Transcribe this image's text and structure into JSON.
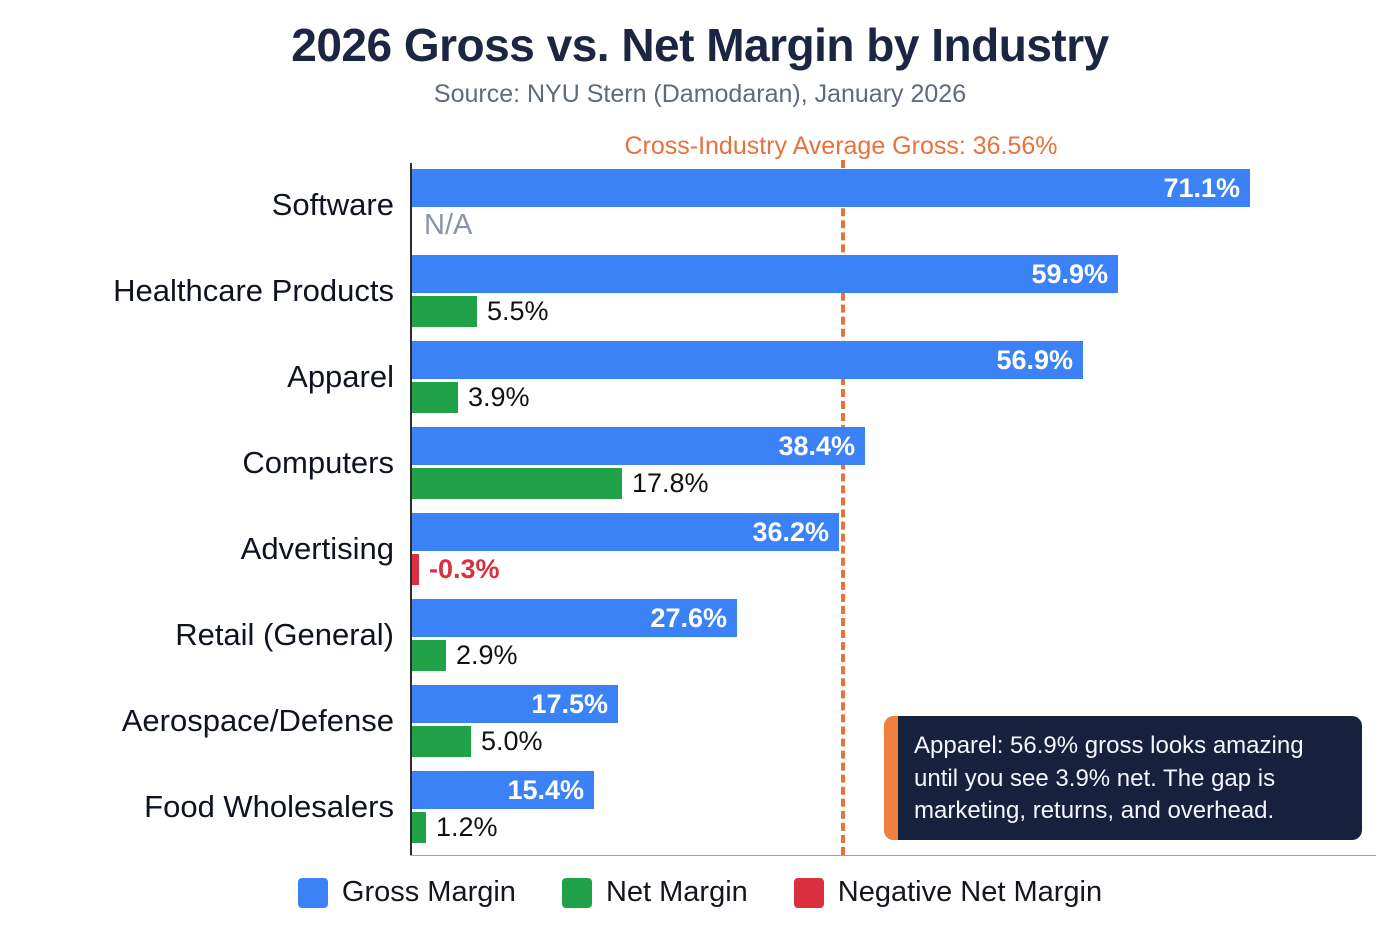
{
  "title": "2026 Gross vs. Net Margin by Industry",
  "subtitle": "Source: NYU Stern (Damodaran), January 2026",
  "average_line": {
    "label": "Cross-Industry Average Gross: 36.56%",
    "value": 36.56
  },
  "chart_data": {
    "type": "bar",
    "orientation": "horizontal",
    "title": "2026 Gross vs. Net Margin by Industry",
    "categories": [
      "Software",
      "Healthcare Products",
      "Apparel",
      "Computers",
      "Advertising",
      "Retail (General)",
      "Aerospace/Defense",
      "Food Wholesalers"
    ],
    "series": [
      {
        "name": "Gross Margin",
        "values": [
          71.1,
          59.9,
          56.9,
          38.4,
          36.2,
          27.6,
          17.5,
          15.4
        ]
      },
      {
        "name": "Net Margin",
        "values": [
          null,
          5.5,
          3.9,
          17.8,
          -0.3,
          2.9,
          5.0,
          1.2
        ]
      }
    ],
    "gross_labels": [
      "71.1%",
      "59.9%",
      "56.9%",
      "38.4%",
      "36.2%",
      "27.6%",
      "17.5%",
      "15.4%"
    ],
    "net_labels": [
      "N/A",
      "5.5%",
      "3.9%",
      "17.8%",
      "-0.3%",
      "2.9%",
      "5.0%",
      "1.2%"
    ],
    "xlim": [
      0,
      71.1
    ],
    "grid": false,
    "legend_position": "bottom",
    "reference_line": {
      "label": "Cross-Industry Average Gross: 36.56%",
      "value": 36.56
    }
  },
  "legend": [
    {
      "label": "Gross Margin",
      "color": "#3b82f6"
    },
    {
      "label": "Net Margin",
      "color": "#21a148"
    },
    {
      "label": "Negative Net Margin",
      "color": "#d92f3e"
    }
  ],
  "callout": {
    "text": "Apparel: 56.9% gross looks amazing until you see 3.9% net. The gap is marketing, returns, and overhead."
  },
  "colors": {
    "gross": "#3b82f6",
    "net": "#21a148",
    "negative": "#d92f3e",
    "accent_orange": "#e8713c",
    "title": "#1c2541",
    "subtitle": "#5f6b7a",
    "callout_bg": "#16213d",
    "callout_accent": "#ef8040"
  }
}
